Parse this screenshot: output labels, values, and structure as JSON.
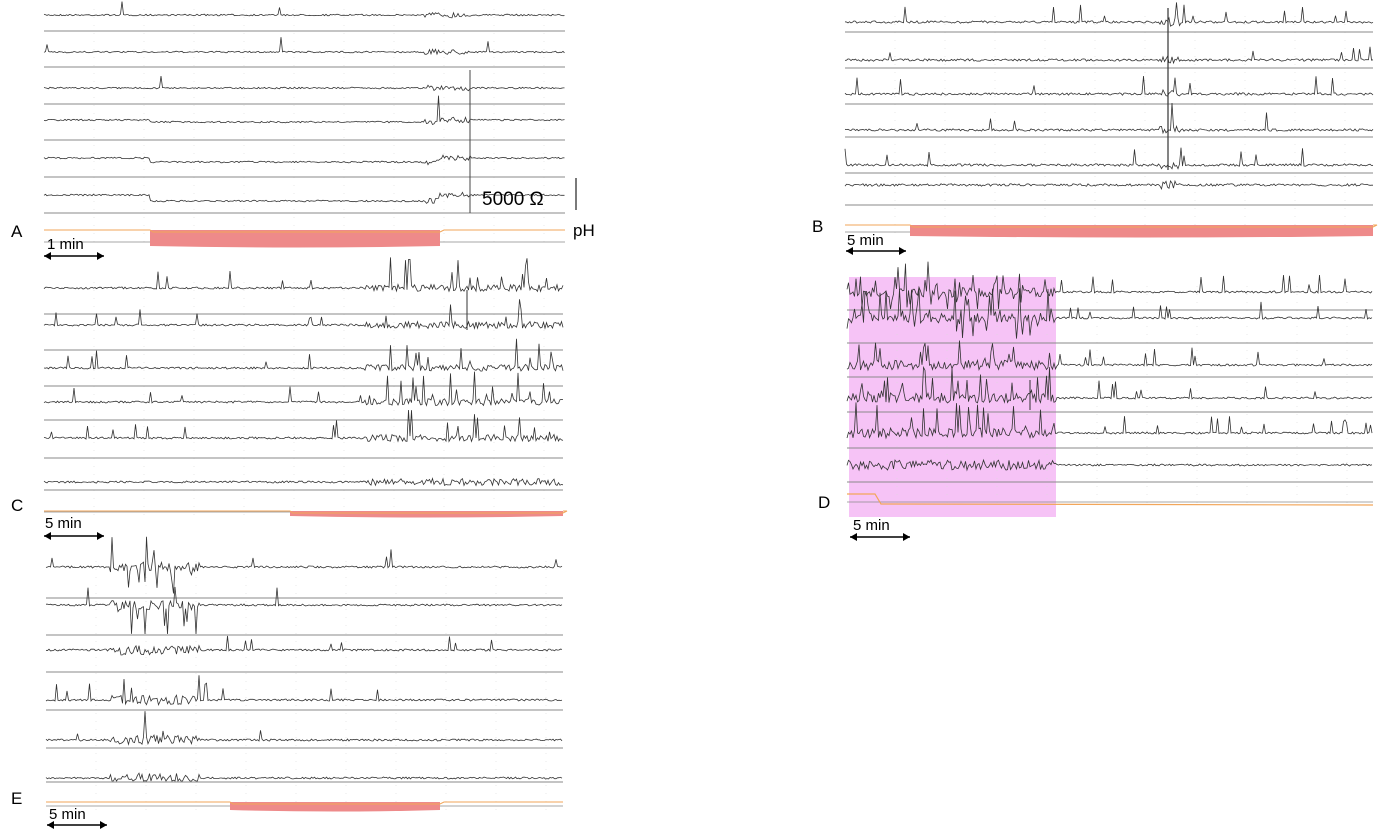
{
  "figure": {
    "panels": [
      {
        "id": "A",
        "label": "A",
        "scale_label": "1 min",
        "resistance_label": "5000 Ω",
        "ph_label": "pH"
      },
      {
        "id": "B",
        "label": "B",
        "scale_label": "5 min"
      },
      {
        "id": "C",
        "label": "C",
        "scale_label": "5 min"
      },
      {
        "id": "D",
        "label": "D",
        "scale_label": "5 min"
      },
      {
        "id": "E",
        "label": "E",
        "scale_label": "5 min"
      }
    ]
  },
  "colors": {
    "trace": "#333333",
    "baseline": "#8a8a8a",
    "ph_line": "#f2a65a",
    "acid_fill": "#ee8a8a",
    "highlight": "#f5b8f5"
  },
  "chart_data": [
    {
      "type": "line",
      "panel": "A",
      "channels": 6,
      "ph_channel": true,
      "scale_bar": "1 min",
      "amplitude_scale": "5000 Ω",
      "acid_exposure_fraction": [
        0.21,
        0.76
      ],
      "event_fraction": 0.82
    },
    {
      "type": "line",
      "panel": "B",
      "channels": 6,
      "ph_channel": true,
      "scale_bar": "5 min",
      "acid_exposure_fraction": [
        0.12,
        1.0
      ],
      "event_fraction": 0.62
    },
    {
      "type": "line",
      "panel": "C",
      "channels": 6,
      "ph_channel": true,
      "scale_bar": "5 min",
      "acid_exposure_fraction": [
        0.48,
        1.0
      ],
      "event_fraction": 0.81
    },
    {
      "type": "line",
      "panel": "D",
      "channels": 6,
      "ph_channel": true,
      "scale_bar": "5 min",
      "highlight_fraction": [
        0.0,
        0.4
      ],
      "event_fraction": 0.35
    },
    {
      "type": "line",
      "panel": "E",
      "channels": 6,
      "ph_channel": true,
      "scale_bar": "5 min",
      "acid_exposure_fraction": [
        0.36,
        0.75
      ],
      "event_fraction": 0.28
    }
  ]
}
